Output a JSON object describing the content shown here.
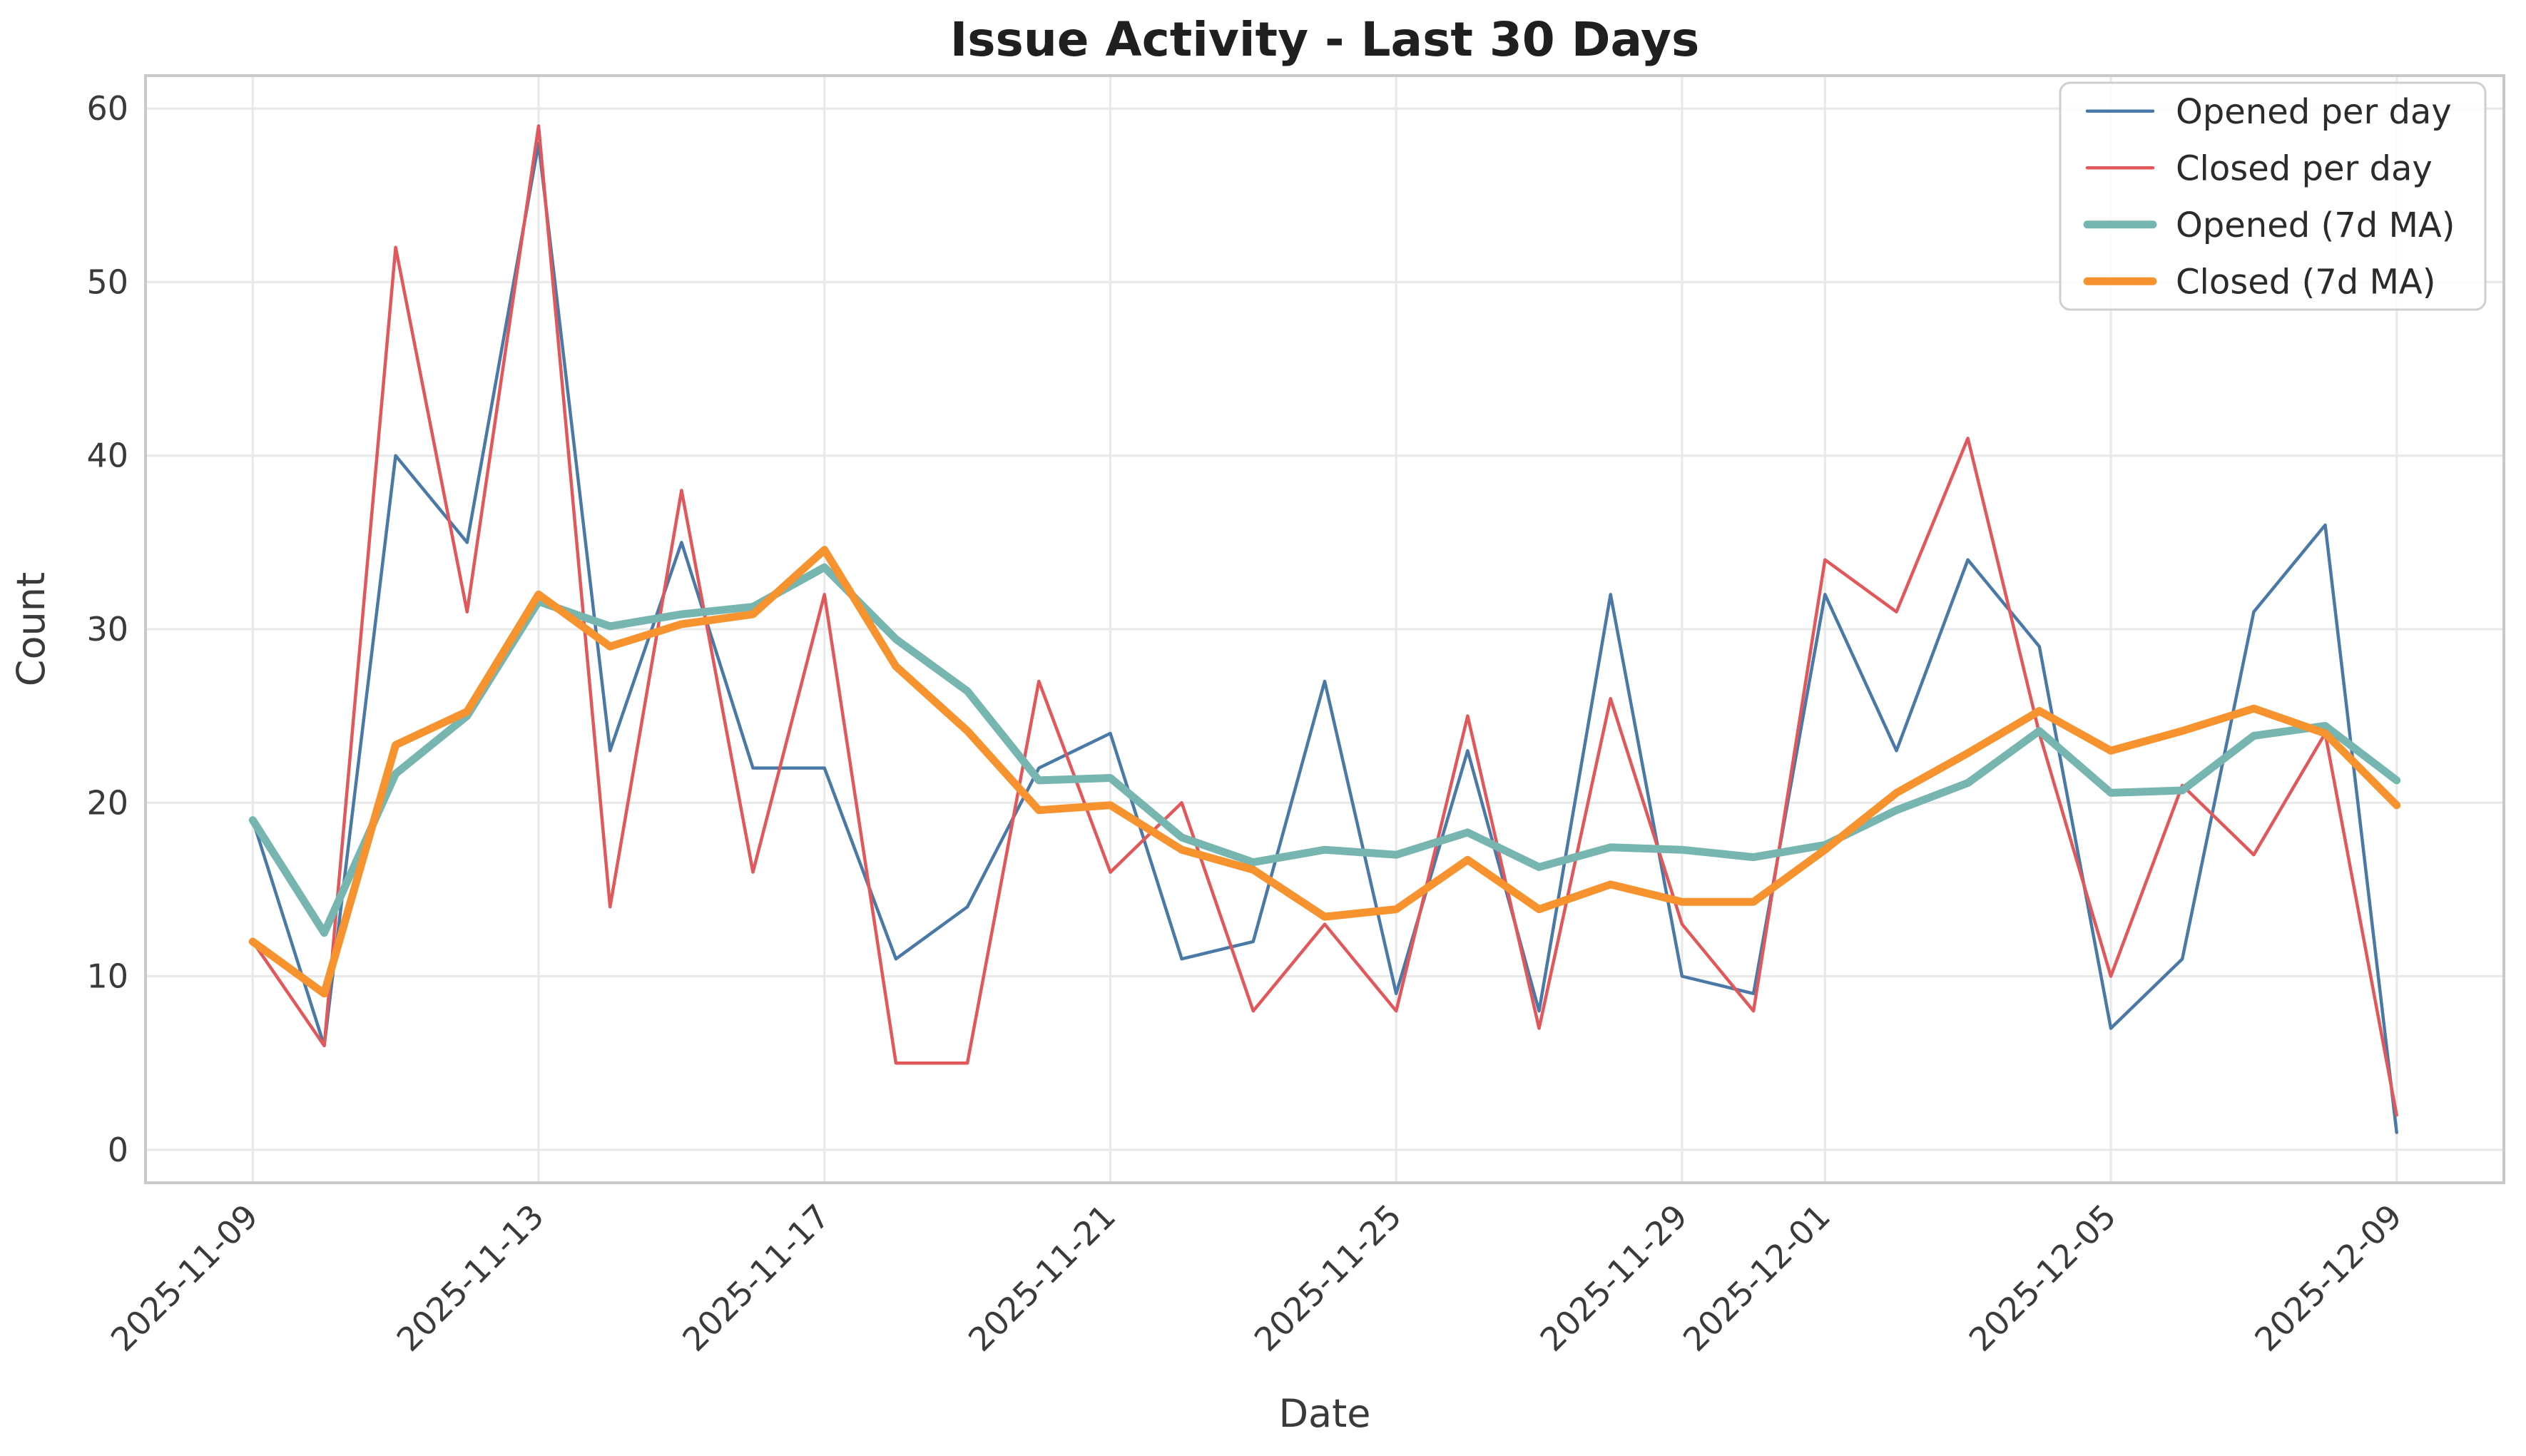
{
  "chart_data": {
    "type": "line",
    "title": "Issue Activity - Last 30 Days",
    "xlabel": "Date",
    "ylabel": "Count",
    "grid": true,
    "legend_position": "upper right",
    "ylim": [
      -1.9,
      61.9
    ],
    "y_ticks": [
      0,
      10,
      20,
      30,
      40,
      50,
      60
    ],
    "x_tick_indices": [
      0,
      4,
      8,
      12,
      16,
      20,
      22,
      26,
      30
    ],
    "x_tick_labels": [
      "2025-11-09",
      "2025-11-13",
      "2025-11-17",
      "2025-11-21",
      "2025-11-25",
      "2025-11-29",
      "2025-12-01",
      "2025-12-05",
      "2025-12-09"
    ],
    "dates": [
      "2025-11-09",
      "2025-11-10",
      "2025-11-11",
      "2025-11-12",
      "2025-11-13",
      "2025-11-14",
      "2025-11-15",
      "2025-11-16",
      "2025-11-17",
      "2025-11-18",
      "2025-11-19",
      "2025-11-20",
      "2025-11-21",
      "2025-11-22",
      "2025-11-23",
      "2025-11-24",
      "2025-11-25",
      "2025-11-26",
      "2025-11-27",
      "2025-11-28",
      "2025-11-29",
      "2025-11-30",
      "2025-12-01",
      "2025-12-02",
      "2025-12-03",
      "2025-12-04",
      "2025-12-05",
      "2025-12-06",
      "2025-12-07",
      "2025-12-08",
      "2025-12-09"
    ],
    "series": [
      {
        "name": "Opened per day",
        "color": "#4a79a8",
        "width": 4.5,
        "values": [
          19,
          6,
          40,
          35,
          58,
          23,
          35,
          22,
          22,
          11,
          14,
          22,
          24,
          11,
          12,
          27,
          9,
          23,
          8,
          32,
          10,
          9,
          32,
          23,
          34,
          29,
          7,
          11,
          31,
          36,
          1
        ]
      },
      {
        "name": "Closed per day",
        "color": "#e25759",
        "width": 4.5,
        "values": [
          12,
          6,
          52,
          31,
          59,
          14,
          38,
          16,
          32,
          5,
          5,
          27,
          16,
          20,
          8,
          13,
          8,
          25,
          7,
          26,
          13,
          8,
          34,
          31,
          41,
          24,
          10,
          21,
          17,
          24,
          2
        ]
      },
      {
        "name": "Opened (7d MA)",
        "color": "#76b5b0",
        "width": 11,
        "values": [
          19,
          12.5,
          21.67,
          25,
          31.6,
          30.17,
          30.86,
          31.29,
          33.57,
          29.43,
          26.43,
          21.29,
          21.43,
          18,
          16.57,
          17.29,
          17,
          18.29,
          16.29,
          17.43,
          17.29,
          16.86,
          17.57,
          19.57,
          21.14,
          24.14,
          20.57,
          20.71,
          23.86,
          24.43,
          21.29
        ]
      },
      {
        "name": "Closed (7d MA)",
        "color": "#f6932e",
        "width": 11,
        "values": [
          12,
          9,
          23.33,
          25.25,
          32,
          29,
          30.29,
          30.86,
          34.57,
          27.86,
          24.14,
          19.57,
          19.86,
          17.29,
          16.14,
          13.43,
          13.86,
          16.71,
          13.86,
          15.29,
          14.29,
          14.29,
          17.29,
          20.57,
          22.86,
          25.29,
          23,
          24.14,
          25.43,
          24,
          19.86
        ]
      }
    ],
    "colors": {
      "background": "#ffffff",
      "gridline": "#e9e9e9",
      "spine": "#c9c9c9",
      "tick_text": "#3a3a3a",
      "title_text": "#1f1f1f",
      "legend_border": "#cfcfcf"
    }
  }
}
